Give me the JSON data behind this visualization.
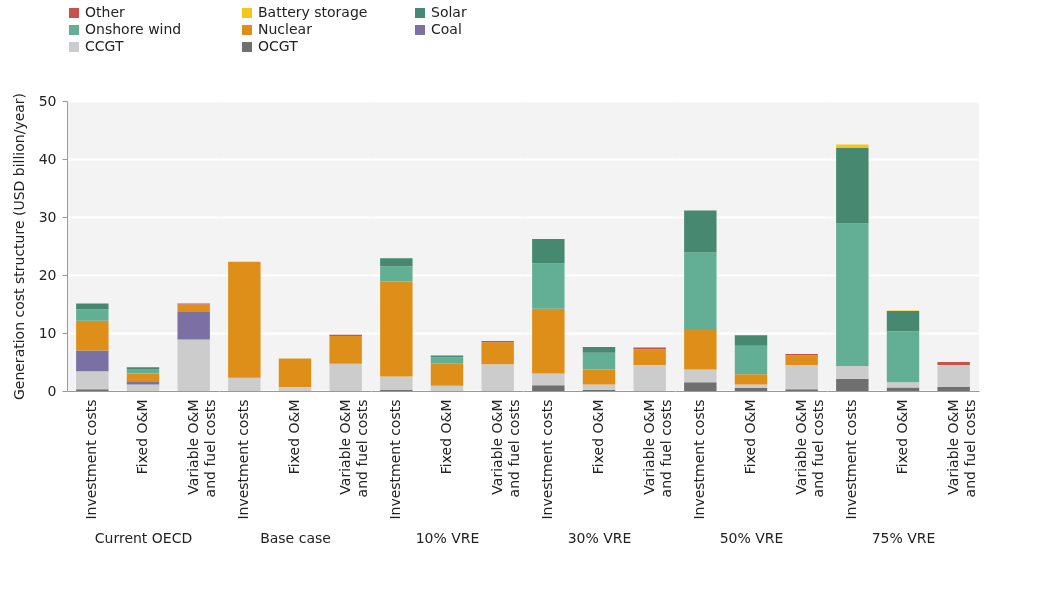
{
  "chart_data": [
    {
      "type": "bar",
      "stacked": true,
      "xlabel": "Current OECD",
      "ylabel": "Generation cost structure (USD billion/year)",
      "categories": [
        "Investment costs",
        "Fixed O&M",
        "Variable O&M and fuel costs"
      ],
      "ylim": [
        0,
        50
      ],
      "yticks": [
        0,
        10,
        20,
        30,
        40,
        50
      ],
      "grid": "y",
      "legend": "top right",
      "series": [
        {
          "name": "OCGT",
          "color": "#6f6f6f",
          "values": [
            0.3,
            null,
            null
          ]
        },
        {
          "name": "CCGT",
          "color": "#cccccc",
          "values": [
            3.1,
            1.1,
            8.9
          ]
        },
        {
          "name": "Coal",
          "color": "#7a70a3",
          "values": [
            3.6,
            0.6,
            4.7
          ]
        },
        {
          "name": "Nuclear",
          "color": "#dd8f19",
          "values": [
            5.1,
            1.3,
            1.3
          ]
        },
        {
          "name": "Onshore wind",
          "color": "#63af96",
          "values": [
            2.0,
            0.8,
            null
          ]
        },
        {
          "name": "Solar",
          "color": "#468870",
          "values": [
            1.0,
            0.3,
            null
          ]
        },
        {
          "name": "Battery storage",
          "color": "#f2c71a",
          "values": [
            null,
            null,
            null
          ]
        },
        {
          "name": "Other",
          "color": "#c9514a",
          "values": [
            null,
            null,
            0.2
          ]
        }
      ]
    },
    {
      "type": "bar",
      "stacked": true,
      "xlabel": "Base case",
      "categories": [
        "Investment costs",
        "Fixed O&M",
        "Variable O&M and fuel costs"
      ],
      "ylim": [
        0,
        50
      ],
      "yticks": [
        0,
        10,
        20,
        30,
        40,
        50
      ],
      "grid": "y",
      "tick_labels": "x",
      "series": [
        {
          "color": "#6f6f6f",
          "values": [
            null,
            null,
            null
          ]
        },
        {
          "color": "#cccccc",
          "values": [
            2.3,
            0.7,
            4.7
          ]
        },
        {
          "color": "#7a70a3",
          "values": [
            null,
            null,
            null
          ]
        },
        {
          "color": "#dd8f19",
          "values": [
            20.0,
            4.9,
            4.8
          ]
        },
        {
          "color": "#63af96",
          "values": [
            null,
            null,
            null
          ]
        },
        {
          "color": "#468870",
          "values": [
            null,
            null,
            null
          ]
        },
        {
          "color": "#f2c71a",
          "values": [
            null,
            null,
            null
          ]
        },
        {
          "color": "#c9514a",
          "values": [
            null,
            null,
            0.2
          ]
        }
      ]
    },
    {
      "type": "bar",
      "stacked": true,
      "xlabel": "10% VRE",
      "categories": [
        "Investment costs",
        "Fixed O&M",
        "Variable O&M and fuel costs"
      ],
      "ylim": [
        0,
        50
      ],
      "yticks": [
        0,
        10,
        20,
        30,
        40,
        50
      ],
      "grid": "y",
      "tick_labels": "x",
      "series": [
        {
          "color": "#6f6f6f",
          "values": [
            0.2,
            null,
            null
          ]
        },
        {
          "color": "#cccccc",
          "values": [
            2.3,
            0.9,
            4.6
          ]
        },
        {
          "color": "#7a70a3",
          "values": [
            null,
            null,
            null
          ]
        },
        {
          "color": "#dd8f19",
          "values": [
            16.4,
            3.9,
            3.8
          ]
        },
        {
          "color": "#63af96",
          "values": [
            2.6,
            1.0,
            null
          ]
        },
        {
          "color": "#468870",
          "values": [
            1.4,
            0.3,
            null
          ]
        },
        {
          "color": "#f2c71a",
          "values": [
            null,
            null,
            null
          ]
        },
        {
          "color": "#c9514a",
          "values": [
            null,
            null,
            0.2
          ]
        }
      ]
    },
    {
      "type": "bar",
      "stacked": true,
      "xlabel": "30% VRE",
      "categories": [
        "Investment costs",
        "Fixed O&M",
        "Variable O&M and fuel costs"
      ],
      "ylim": [
        0,
        50
      ],
      "yticks": [
        0,
        10,
        20,
        30,
        40,
        50
      ],
      "grid": "y",
      "tick_labels": "x",
      "series": [
        {
          "color": "#6f6f6f",
          "values": [
            1.0,
            0.2,
            null
          ]
        },
        {
          "color": "#cccccc",
          "values": [
            2.0,
            0.9,
            4.5
          ]
        },
        {
          "color": "#7a70a3",
          "values": [
            null,
            null,
            null
          ]
        },
        {
          "color": "#dd8f19",
          "values": [
            11.2,
            2.6,
            2.7
          ]
        },
        {
          "color": "#63af96",
          "values": [
            7.8,
            2.9,
            null
          ]
        },
        {
          "color": "#468870",
          "values": [
            4.2,
            1.0,
            null
          ]
        },
        {
          "color": "#f2c71a",
          "values": [
            null,
            null,
            null
          ]
        },
        {
          "color": "#c9514a",
          "values": [
            null,
            null,
            0.3
          ]
        }
      ]
    },
    {
      "type": "bar",
      "stacked": true,
      "xlabel": "50% VRE",
      "categories": [
        "Investment costs",
        "Fixed O&M",
        "Variable O&M and fuel costs"
      ],
      "ylim": [
        0,
        50
      ],
      "yticks": [
        0,
        10,
        20,
        30,
        40,
        50
      ],
      "grid": "y",
      "tick_labels": "x",
      "series": [
        {
          "color": "#6f6f6f",
          "values": [
            1.5,
            0.5,
            0.3
          ]
        },
        {
          "color": "#cccccc",
          "values": [
            2.2,
            0.6,
            4.2
          ]
        },
        {
          "color": "#7a70a3",
          "values": [
            null,
            null,
            null
          ]
        },
        {
          "color": "#dd8f19",
          "values": [
            6.8,
            1.8,
            1.6
          ]
        },
        {
          "color": "#63af96",
          "values": [
            13.4,
            4.9,
            null
          ]
        },
        {
          "color": "#468870",
          "values": [
            7.2,
            1.8,
            null
          ]
        },
        {
          "color": "#f2c71a",
          "values": [
            null,
            null,
            null
          ]
        },
        {
          "color": "#c9514a",
          "values": [
            null,
            null,
            0.3
          ]
        }
      ]
    },
    {
      "type": "bar",
      "stacked": true,
      "xlabel": "75% VRE",
      "categories": [
        "Investment costs",
        "Fixed O&M",
        "Variable O&M and fuel costs"
      ],
      "ylim": [
        0,
        50
      ],
      "yticks": [
        0,
        10,
        20,
        30,
        40,
        50
      ],
      "grid": "y",
      "tick_labels": "x",
      "series": [
        {
          "color": "#6f6f6f",
          "values": [
            2.1,
            0.6,
            0.7
          ]
        },
        {
          "color": "#cccccc",
          "values": [
            2.2,
            0.9,
            3.8
          ]
        },
        {
          "color": "#7a70a3",
          "values": [
            null,
            null,
            null
          ]
        },
        {
          "color": "#dd8f19",
          "values": [
            null,
            null,
            null
          ]
        },
        {
          "color": "#63af96",
          "values": [
            24.6,
            8.8,
            null
          ]
        },
        {
          "color": "#468870",
          "values": [
            13.0,
            3.5,
            null
          ]
        },
        {
          "color": "#f2c71a",
          "values": [
            0.6,
            0.1,
            null
          ]
        },
        {
          "color": "#c9514a",
          "values": [
            null,
            null,
            0.5
          ]
        }
      ]
    }
  ]
}
